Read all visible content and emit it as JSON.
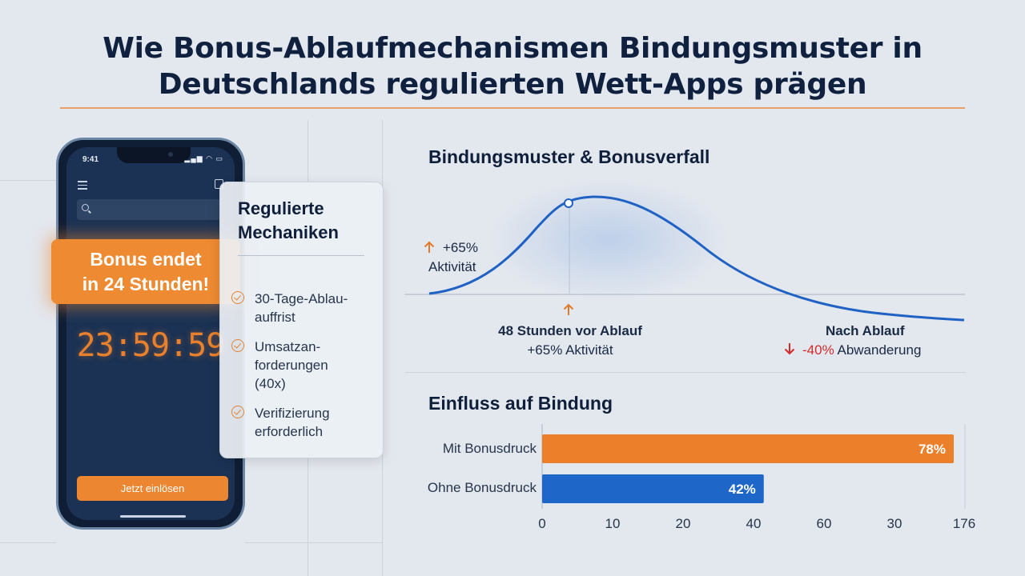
{
  "title": {
    "line1": "Wie Bonus-Ablaufmechanismen Bindungsmuster in",
    "line2": "Deutschlands regulierten Wett-Apps prägen"
  },
  "phone": {
    "status_time": "9:41",
    "timer": "23:59:59",
    "redeem_button": "Jetzt einlösen",
    "badge_line1": "Bonus endet",
    "badge_line2": "in 24 Stunden!"
  },
  "mechanics": {
    "title_line1": "Regulierte",
    "title_line2": "Mechaniken",
    "items": [
      {
        "lines": [
          "30-Tage-Ablau-",
          "auffrist"
        ]
      },
      {
        "lines": [
          "Umsatzan-",
          "forderungen",
          "(40x)"
        ]
      },
      {
        "lines": [
          "Verifizierung",
          "erforderlich"
        ]
      }
    ]
  },
  "colors": {
    "accent": "#ed8a32",
    "line": "#1f62c4",
    "bar_orange": "#ec7f2a",
    "bar_blue": "#1f66c9",
    "decline": "#d32a2a"
  },
  "chart_data": [
    {
      "type": "line",
      "title": "Bindungsmuster & Bonusverfall",
      "annotations": {
        "peak_value": "+65%",
        "peak_label": "Aktivität",
        "marker_title": "48 Stunden vor Ablauf",
        "marker_sub": "+65% Aktivität",
        "after_title": "Nach Ablauf",
        "after_value": "-40%",
        "after_label": "Abwanderung"
      },
      "grid": false
    },
    {
      "type": "bar",
      "orientation": "horizontal",
      "title": "Einfluss auf Bindung",
      "categories": [
        "Mit Bonusdruck",
        "Ohne Bonusdruck"
      ],
      "values": [
        78,
        42
      ],
      "value_labels": [
        "78%",
        "42%"
      ],
      "xticks": [
        "0",
        "10",
        "20",
        "40",
        "60",
        "30",
        "176"
      ]
    }
  ]
}
